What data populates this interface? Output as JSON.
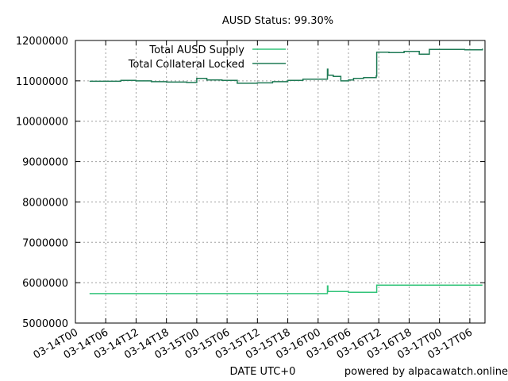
{
  "chart_data": {
    "type": "line",
    "title": "AUSD Status: 99.30%",
    "xlabel": "DATE UTC+0",
    "ylabel": "",
    "footer": "powered by alpacawatch.online",
    "xlim": [
      "2022-03-14T00:00",
      "2022-03-17T09:00"
    ],
    "ylim": [
      5000000,
      12000000
    ],
    "grid": true,
    "legend_position": "top-left",
    "x_tick_labels": [
      "03-14T00",
      "03-14T06",
      "03-14T12",
      "03-14T18",
      "03-15T00",
      "03-15T06",
      "03-15T12",
      "03-15T18",
      "03-16T00",
      "03-16T06",
      "03-16T12",
      "03-16T18",
      "03-17T00",
      "03-17T06"
    ],
    "y_tick_labels": [
      "5000000",
      "6000000",
      "7000000",
      "8000000",
      "9000000",
      "10000000",
      "11000000",
      "12000000"
    ],
    "series": [
      {
        "name": "Total AUSD Supply",
        "color": "#33c47a",
        "points": [
          [
            "2022-03-14T02:48",
            5730000
          ],
          [
            "2022-03-16T01:30",
            5730000
          ],
          [
            "2022-03-16T01:48",
            5730000
          ],
          [
            "2022-03-16T01:50",
            5920000
          ],
          [
            "2022-03-16T01:56",
            5780000
          ],
          [
            "2022-03-16T06:00",
            5760000
          ],
          [
            "2022-03-16T11:00",
            5760000
          ],
          [
            "2022-03-16T11:30",
            5760000
          ],
          [
            "2022-03-16T11:35",
            5940000
          ],
          [
            "2022-03-17T08:30",
            5940000
          ]
        ]
      },
      {
        "name": "Total Collateral Locked",
        "color": "#1f7a55",
        "points": [
          [
            "2022-03-14T02:48",
            10990000
          ],
          [
            "2022-03-14T06:00",
            10990000
          ],
          [
            "2022-03-14T09:00",
            11010000
          ],
          [
            "2022-03-14T12:00",
            11000000
          ],
          [
            "2022-03-14T15:00",
            10980000
          ],
          [
            "2022-03-14T18:00",
            10970000
          ],
          [
            "2022-03-14T22:00",
            10960000
          ],
          [
            "2022-03-15T00:00",
            11060000
          ],
          [
            "2022-03-15T02:00",
            11020000
          ],
          [
            "2022-03-15T05:00",
            11010000
          ],
          [
            "2022-03-15T08:00",
            10940000
          ],
          [
            "2022-03-15T12:00",
            10950000
          ],
          [
            "2022-03-15T15:00",
            10980000
          ],
          [
            "2022-03-15T18:00",
            11010000
          ],
          [
            "2022-03-15T21:00",
            11040000
          ],
          [
            "2022-03-16T00:00",
            11040000
          ],
          [
            "2022-03-16T01:30",
            11040000
          ],
          [
            "2022-03-16T01:48",
            11040000
          ],
          [
            "2022-03-16T01:50",
            11290000
          ],
          [
            "2022-03-16T01:56",
            11140000
          ],
          [
            "2022-03-16T03:00",
            11110000
          ],
          [
            "2022-03-16T04:30",
            11000000
          ],
          [
            "2022-03-16T06:00",
            11020000
          ],
          [
            "2022-03-16T07:00",
            11060000
          ],
          [
            "2022-03-16T09:00",
            11080000
          ],
          [
            "2022-03-16T11:30",
            11120000
          ],
          [
            "2022-03-16T11:35",
            11710000
          ],
          [
            "2022-03-16T14:00",
            11700000
          ],
          [
            "2022-03-16T17:00",
            11730000
          ],
          [
            "2022-03-16T20:00",
            11660000
          ],
          [
            "2022-03-16T22:00",
            11780000
          ],
          [
            "2022-03-17T02:00",
            11780000
          ],
          [
            "2022-03-17T05:00",
            11770000
          ],
          [
            "2022-03-17T08:30",
            11800000
          ]
        ]
      }
    ]
  },
  "colors": {
    "supply_line": "#33c47a",
    "collateral_line": "#1f7a55",
    "grid": "#a0a0a0",
    "axis": "#000000"
  }
}
